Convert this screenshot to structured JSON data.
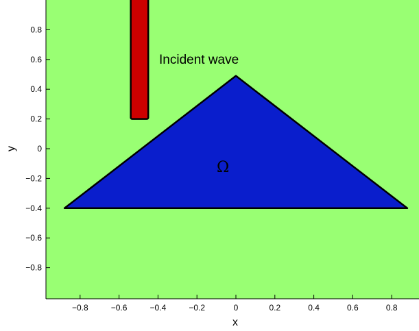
{
  "chart_data": {
    "type": "diagram",
    "title": "",
    "xlabel": "x",
    "ylabel": "y",
    "xlim": [
      -1,
      1
    ],
    "ylim": [
      -1,
      1
    ],
    "x_ticks": [
      "−0.8",
      "−0.6",
      "−0.4",
      "−0.2",
      "0",
      "0.2",
      "0.4",
      "0.6",
      "0.8"
    ],
    "y_ticks": [
      "0.8",
      "0.6",
      "0.4",
      "0.2",
      "0",
      "−0.2",
      "−0.4",
      "−0.6",
      "−0.8"
    ],
    "background_color": "#99ff73",
    "domain_region": {
      "label": "Ω",
      "color": "#0a1ecc",
      "vertices": [
        [
          -0.88,
          -0.4
        ],
        [
          0.0,
          0.49
        ],
        [
          0.88,
          -0.4
        ]
      ]
    },
    "incident_wave_bar": {
      "label": "Incident wave",
      "color": "#cc0000",
      "x_range": [
        -0.54,
        -0.45
      ],
      "y_range": [
        0.2,
        1.0
      ]
    }
  }
}
